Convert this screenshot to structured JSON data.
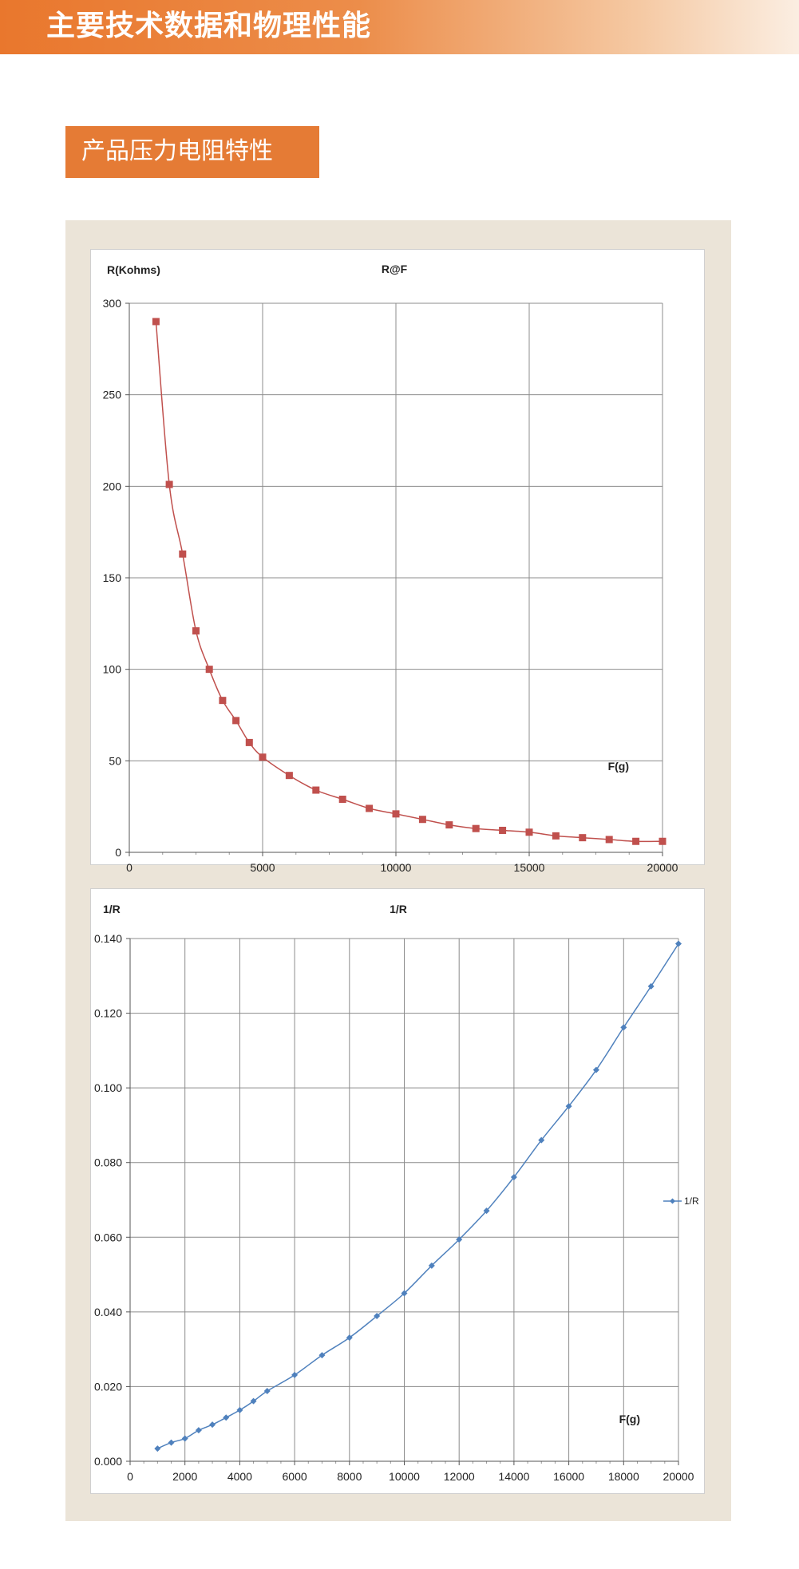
{
  "header": {
    "title": "主要技术数据和物理性能"
  },
  "section": {
    "title": "产品压力电阻特性"
  },
  "chart_data": [
    {
      "type": "line",
      "title": "R@F",
      "xlabel": "F(g)",
      "ylabel": "R(Kohms)",
      "xlim": [
        0,
        20000
      ],
      "ylim": [
        0,
        300
      ],
      "xticks": [
        "0",
        "5000",
        "10000",
        "15000",
        "20000"
      ],
      "yticks": [
        "0",
        "50",
        "100",
        "150",
        "200",
        "250",
        "300"
      ],
      "grid": true,
      "marker": "square",
      "color": "#c0504d",
      "series": [
        {
          "x": [
            1000,
            1500,
            2000,
            2500,
            3000,
            3500,
            4000,
            4500,
            5000,
            6000,
            7000,
            8000,
            9000,
            10000,
            11000,
            12000,
            13000,
            14000,
            15000,
            16000,
            17000,
            18000,
            19000,
            20000
          ],
          "values": [
            290,
            201,
            163,
            121,
            100,
            83,
            72,
            60,
            52,
            42,
            34,
            29,
            24,
            21,
            18,
            15,
            13,
            12,
            11,
            9,
            8,
            7,
            6,
            6
          ]
        }
      ]
    },
    {
      "type": "line",
      "title": "1/R",
      "xlabel": "F(g)",
      "ylabel": "1/R",
      "xlim": [
        0,
        20000
      ],
      "ylim": [
        0,
        0.14
      ],
      "xticks": [
        "0",
        "2000",
        "4000",
        "6000",
        "8000",
        "10000",
        "12000",
        "14000",
        "16000",
        "18000",
        "20000"
      ],
      "yticks": [
        "0.000",
        "0.020",
        "0.040",
        "0.060",
        "0.080",
        "0.100",
        "0.120",
        "0.140"
      ],
      "grid": true,
      "marker": "diamond",
      "color": "#4f81bd",
      "legend_position": "right",
      "series": [
        {
          "name": "1/R",
          "x": [
            1000,
            1500,
            2000,
            2500,
            3000,
            3500,
            4000,
            4500,
            5000,
            6000,
            7000,
            8000,
            9000,
            10000,
            11000,
            12000,
            13000,
            14000,
            15000,
            16000,
            17000,
            18000,
            19000,
            20000
          ],
          "values": [
            0.0034,
            0.005,
            0.0061,
            0.0083,
            0.0098,
            0.0117,
            0.0137,
            0.0161,
            0.0188,
            0.0231,
            0.0284,
            0.0331,
            0.0389,
            0.045,
            0.0524,
            0.0594,
            0.0671,
            0.0761,
            0.086,
            0.0951,
            0.1048,
            0.1162,
            0.1272,
            0.1386
          ]
        }
      ]
    }
  ]
}
